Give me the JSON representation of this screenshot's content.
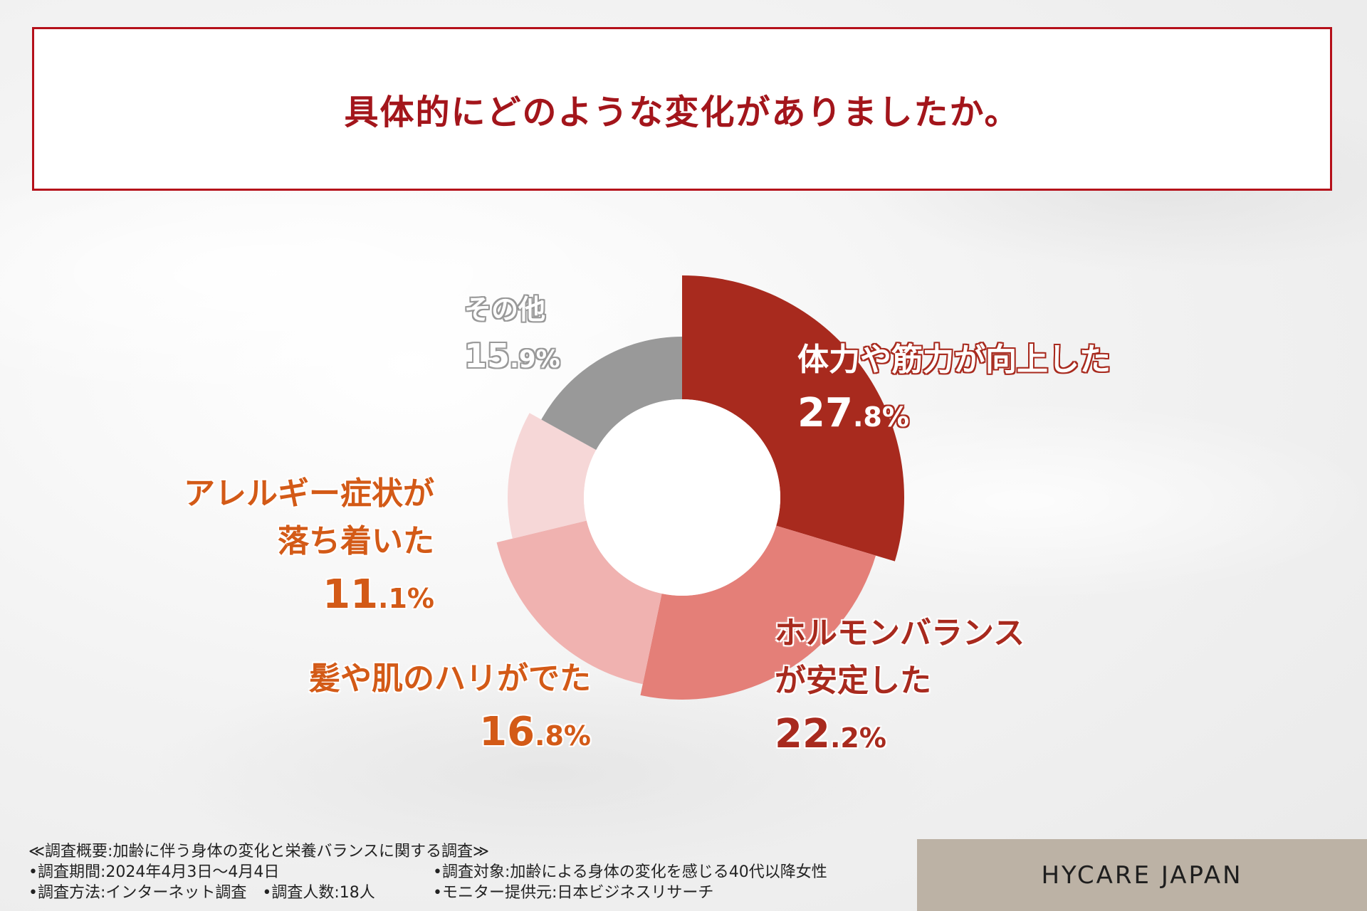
{
  "title": "具体的にどのような変化がありましたか。",
  "chart_data": {
    "type": "pie",
    "donut": true,
    "slices": [
      {
        "name_lines": [
          "体力や筋力が向上した"
        ],
        "value_int": "27",
        "value_dec": ".8%",
        "value": 27.8,
        "color": "#a82a1e",
        "label_color": "#ffffff",
        "label_stroke": "#a82a1e",
        "label_style": "outline"
      },
      {
        "name_lines": [
          "ホルモンバランス",
          "が安定した"
        ],
        "value_int": "22",
        "value_dec": ".2%",
        "value": 22.2,
        "color": "#e47f78",
        "label_color": "#a82a1e",
        "label_style": "halo"
      },
      {
        "name_lines": [
          "髪や肌のハリがでた"
        ],
        "value_int": "16",
        "value_dec": ".8%",
        "value": 16.8,
        "color": "#f0b2b0",
        "label_color": "#d35a17",
        "label_style": "halo"
      },
      {
        "name_lines": [
          "アレルギー症状が",
          "落ち着いた"
        ],
        "value_int": "11",
        "value_dec": ".1%",
        "value": 11.1,
        "color": "#f6d7d7",
        "label_color": "#d35a17",
        "label_style": "halo"
      },
      {
        "name_lines": [
          "その他"
        ],
        "value_int": "15",
        "value_dec": ".9%",
        "value": 15.9,
        "color": "#999999",
        "label_color": "#ffffff",
        "label_stroke": "#999999",
        "label_style": "outline"
      }
    ]
  },
  "footer": {
    "heading": "≪調査概要:加齢に伴う身体の変化と栄養バランスに関する調査≫",
    "period": "•調査期間:2024年4月3日～4月4日",
    "target": "•調査対象:加齢による身体の変化を感じる40代以降女性",
    "method": "•調査方法:インターネット調査　•調査人数:18人",
    "provider": "•モニター提供元:日本ビジネスリサーチ"
  },
  "brand": "HYCARE JAPAN"
}
